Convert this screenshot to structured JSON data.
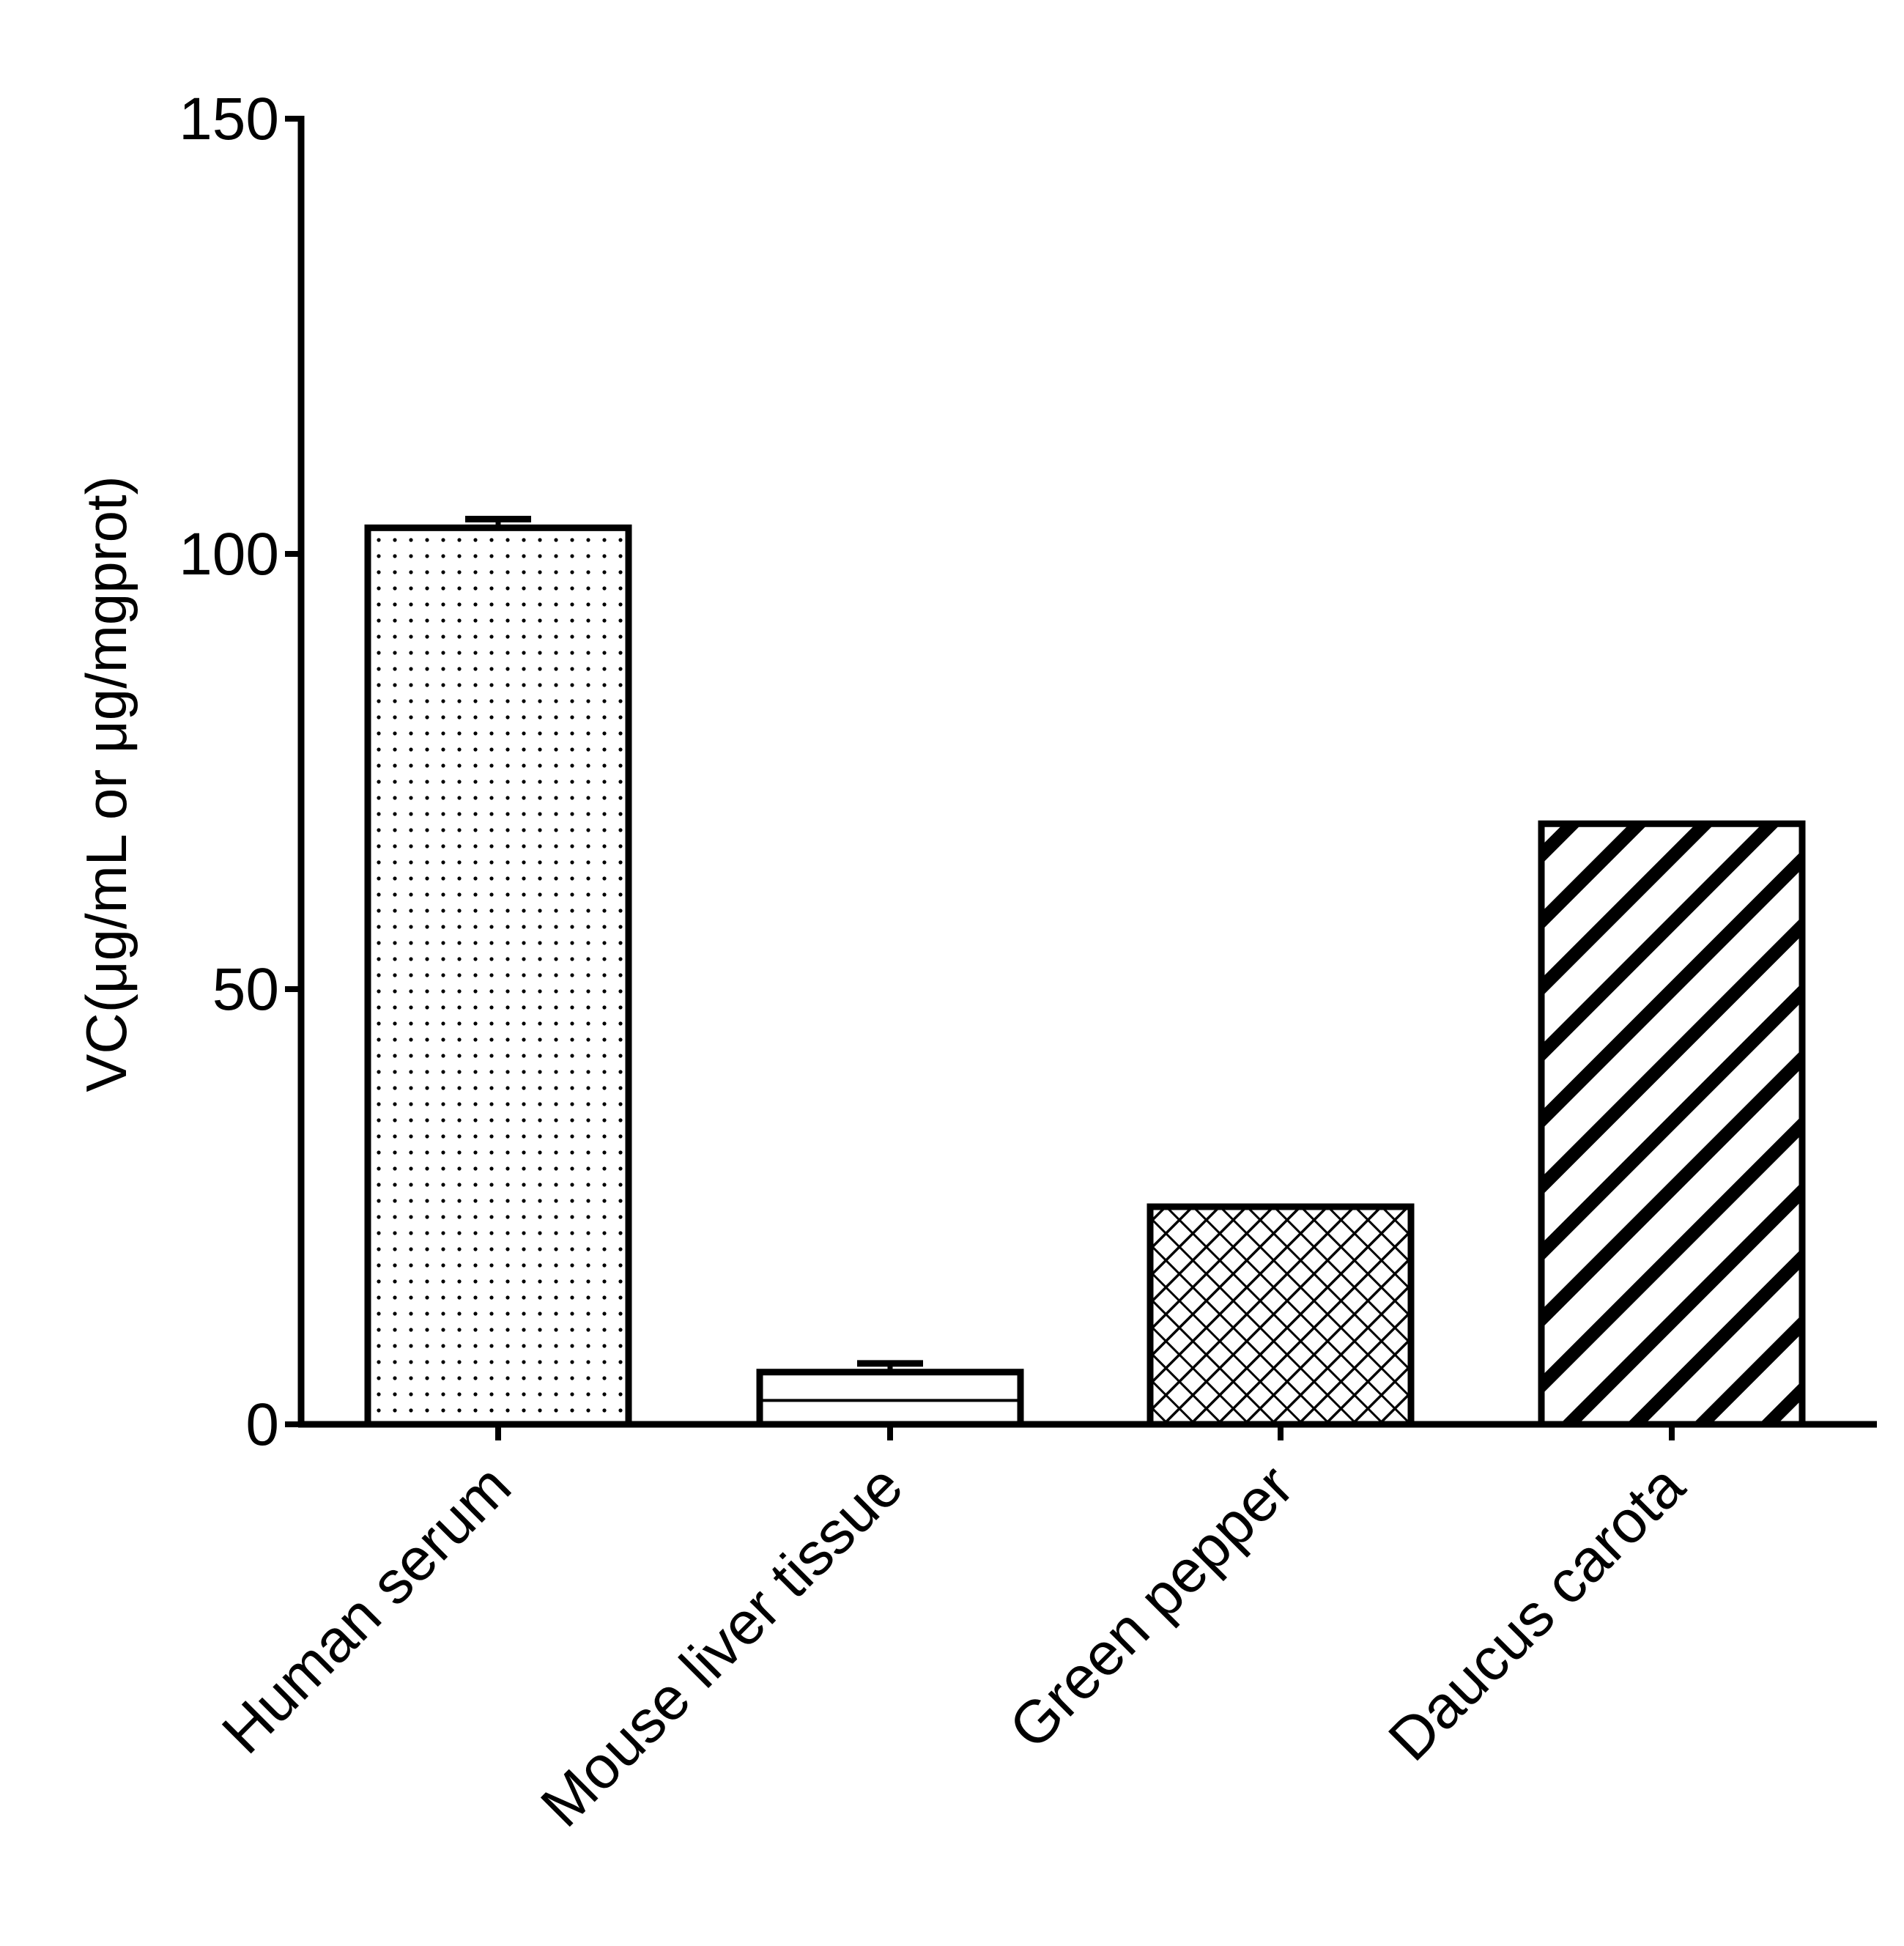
{
  "chart_data": {
    "type": "bar",
    "title": "",
    "xlabel": "",
    "ylabel": "VC(μg/mL or μg/mgprot)",
    "ylim": [
      0,
      150
    ],
    "yticks": [
      0,
      50,
      100,
      150
    ],
    "grid": false,
    "categories": [
      "Human serum",
      "Mouse liver tissue",
      "Green pepper",
      "Daucus carota"
    ],
    "values": [
      103,
      6,
      25,
      69
    ],
    "errors": [
      1,
      1,
      0,
      0
    ],
    "patterns": [
      "dots",
      "horizontal-line",
      "crosshatch",
      "diagonal-stripes"
    ],
    "bar_fill": "#ffffff",
    "stroke_color": "#000000"
  }
}
